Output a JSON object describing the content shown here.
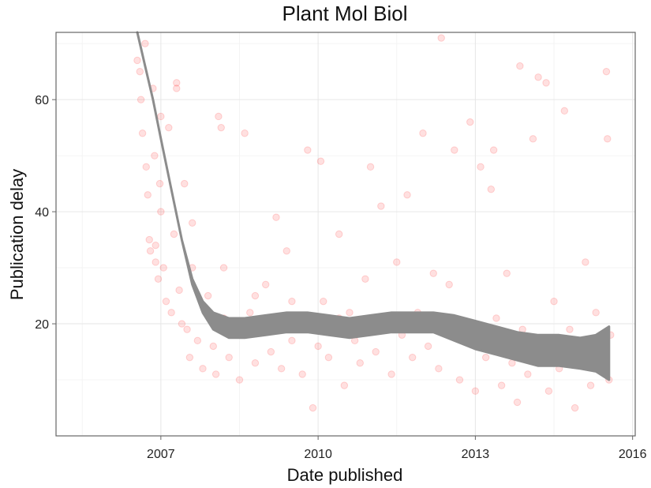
{
  "chart_data": {
    "type": "scatter",
    "title": "Plant Mol Biol",
    "xlabel": "Date published",
    "ylabel": "Publication delay",
    "xlim": [
      2005.0,
      2016.05
    ],
    "ylim": [
      0,
      72
    ],
    "x_ticks": [
      2007,
      2010,
      2013,
      2016
    ],
    "y_ticks": [
      20,
      40,
      60
    ],
    "grid": true,
    "legend": "none",
    "point_color": "#ff0000",
    "point_alpha": 0.12,
    "smooth_color": "#8c8c8c",
    "points": [
      [
        2006.55,
        67
      ],
      [
        2006.6,
        65
      ],
      [
        2006.62,
        60
      ],
      [
        2006.65,
        54
      ],
      [
        2006.7,
        70
      ],
      [
        2006.72,
        48
      ],
      [
        2006.75,
        43
      ],
      [
        2006.78,
        35
      ],
      [
        2006.8,
        33
      ],
      [
        2006.85,
        62
      ],
      [
        2006.88,
        50
      ],
      [
        2006.9,
        31
      ],
      [
        2006.95,
        28
      ],
      [
        2006.98,
        45
      ],
      [
        2007.0,
        40
      ],
      [
        2007.05,
        30
      ],
      [
        2007.1,
        24
      ],
      [
        2007.15,
        55
      ],
      [
        2007.2,
        22
      ],
      [
        2007.25,
        36
      ],
      [
        2007.3,
        62
      ],
      [
        2007.35,
        26
      ],
      [
        2007.4,
        20
      ],
      [
        2007.45,
        45
      ],
      [
        2007.5,
        19
      ],
      [
        2007.55,
        14
      ],
      [
        2007.6,
        30
      ],
      [
        2007.7,
        17
      ],
      [
        2007.8,
        12
      ],
      [
        2007.9,
        25
      ],
      [
        2008.0,
        16
      ],
      [
        2008.05,
        11
      ],
      [
        2008.1,
        57
      ],
      [
        2008.15,
        55
      ],
      [
        2008.2,
        21
      ],
      [
        2008.3,
        14
      ],
      [
        2008.4,
        18
      ],
      [
        2008.5,
        10
      ],
      [
        2008.6,
        54
      ],
      [
        2008.7,
        22
      ],
      [
        2008.8,
        13
      ],
      [
        2008.9,
        19
      ],
      [
        2009.0,
        27
      ],
      [
        2009.1,
        15
      ],
      [
        2009.2,
        39
      ],
      [
        2009.3,
        12
      ],
      [
        2009.4,
        33
      ],
      [
        2009.5,
        17
      ],
      [
        2009.6,
        21
      ],
      [
        2009.7,
        11
      ],
      [
        2009.8,
        51
      ],
      [
        2009.9,
        5
      ],
      [
        2010.0,
        16
      ],
      [
        2010.05,
        49
      ],
      [
        2010.1,
        24
      ],
      [
        2010.2,
        14
      ],
      [
        2010.3,
        19
      ],
      [
        2010.4,
        36
      ],
      [
        2010.5,
        9
      ],
      [
        2010.6,
        22
      ],
      [
        2010.7,
        17
      ],
      [
        2010.8,
        13
      ],
      [
        2010.9,
        28
      ],
      [
        2011.0,
        48
      ],
      [
        2011.1,
        15
      ],
      [
        2011.2,
        41
      ],
      [
        2011.3,
        20
      ],
      [
        2011.4,
        11
      ],
      [
        2011.5,
        31
      ],
      [
        2011.6,
        18
      ],
      [
        2011.7,
        43
      ],
      [
        2011.8,
        14
      ],
      [
        2011.9,
        22
      ],
      [
        2012.0,
        54
      ],
      [
        2012.1,
        16
      ],
      [
        2012.2,
        29
      ],
      [
        2012.3,
        12
      ],
      [
        2012.35,
        71
      ],
      [
        2012.4,
        20
      ],
      [
        2012.5,
        27
      ],
      [
        2012.6,
        51
      ],
      [
        2012.7,
        10
      ],
      [
        2012.8,
        17
      ],
      [
        2012.9,
        56
      ],
      [
        2013.0,
        8
      ],
      [
        2013.1,
        48
      ],
      [
        2013.2,
        14
      ],
      [
        2013.3,
        44
      ],
      [
        2013.35,
        51
      ],
      [
        2013.4,
        21
      ],
      [
        2013.5,
        9
      ],
      [
        2013.6,
        29
      ],
      [
        2013.7,
        13
      ],
      [
        2013.8,
        6
      ],
      [
        2013.85,
        66
      ],
      [
        2013.9,
        19
      ],
      [
        2014.0,
        11
      ],
      [
        2014.1,
        53
      ],
      [
        2014.2,
        64
      ],
      [
        2014.3,
        16
      ],
      [
        2014.35,
        63
      ],
      [
        2014.4,
        8
      ],
      [
        2014.5,
        24
      ],
      [
        2014.6,
        12
      ],
      [
        2014.7,
        58
      ],
      [
        2014.8,
        19
      ],
      [
        2014.9,
        5
      ],
      [
        2015.0,
        15
      ],
      [
        2015.1,
        31
      ],
      [
        2015.2,
        9
      ],
      [
        2015.3,
        22
      ],
      [
        2015.4,
        12
      ],
      [
        2015.5,
        65
      ],
      [
        2015.52,
        53
      ],
      [
        2015.55,
        10
      ],
      [
        2015.58,
        18
      ],
      [
        2006.9,
        34
      ],
      [
        2007.0,
        57
      ],
      [
        2007.3,
        63
      ],
      [
        2007.6,
        38
      ],
      [
        2008.2,
        30
      ],
      [
        2008.8,
        25
      ],
      [
        2009.5,
        24
      ],
      [
        2010.4,
        21
      ],
      [
        2011.3,
        20
      ],
      [
        2012.2,
        21
      ],
      [
        2013.1,
        16
      ],
      [
        2013.9,
        15
      ],
      [
        2014.8,
        14
      ],
      [
        2015.2,
        16
      ]
    ],
    "smooth_band": {
      "x": [
        2006.55,
        2006.7,
        2006.85,
        2007.0,
        2007.2,
        2007.4,
        2007.6,
        2007.8,
        2008.0,
        2008.3,
        2008.6,
        2009.0,
        2009.4,
        2009.8,
        2010.2,
        2010.6,
        2011.0,
        2011.4,
        2011.8,
        2012.2,
        2012.6,
        2013.0,
        2013.4,
        2013.8,
        2014.2,
        2014.6,
        2015.0,
        2015.3,
        2015.55
      ],
      "upper": [
        72,
        66,
        60,
        53,
        44,
        35,
        28,
        24,
        22,
        21,
        21,
        21.5,
        22,
        22,
        21.5,
        21,
        21.5,
        22,
        22,
        22,
        21.5,
        20.5,
        19.5,
        18.5,
        18,
        18,
        17.5,
        18,
        19.5
      ],
      "lower": [
        72,
        66,
        60,
        53,
        44,
        35,
        27,
        22,
        19,
        17.5,
        17.5,
        18,
        18.5,
        18.5,
        18,
        17.5,
        18,
        18.5,
        18.5,
        18.5,
        17,
        15.5,
        14.5,
        13.5,
        12.5,
        12.5,
        12,
        11.5,
        10
      ]
    }
  }
}
